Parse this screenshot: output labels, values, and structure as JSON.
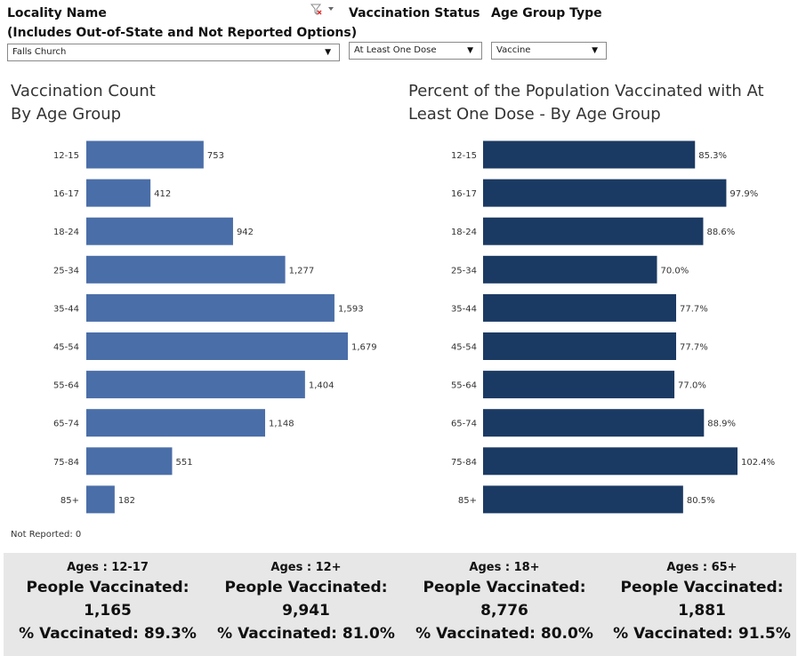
{
  "filters": {
    "locality": {
      "label_line1": "Locality Name",
      "label_line2": "(Includes Out-of-State and Not Reported Options)",
      "value": "Falls Church"
    },
    "vaccination_status": {
      "label": "Vaccination Status",
      "value": "At Least One Dose"
    },
    "age_group_type": {
      "label": "Age Group Type",
      "value": "Vaccine"
    },
    "clear_filter_icon": "filter-clear-icon"
  },
  "chart_data": [
    {
      "type": "bar",
      "orientation": "horizontal",
      "title": "Vaccination Count",
      "subtitle": "By Age Group",
      "categories": [
        "12-15",
        "16-17",
        "18-24",
        "25-34",
        "35-44",
        "45-54",
        "55-64",
        "65-74",
        "75-84",
        "85+"
      ],
      "values": [
        753,
        412,
        942,
        1277,
        1593,
        1679,
        1404,
        1148,
        551,
        182
      ],
      "value_labels": [
        "753",
        "412",
        "942",
        "1,277",
        "1,593",
        "1,679",
        "1,404",
        "1,148",
        "551",
        "182"
      ],
      "color": "#4a6ea8",
      "grid": false
    },
    {
      "type": "bar",
      "orientation": "horizontal",
      "title": "Percent of the Population Vaccinated with At",
      "subtitle": "Least One Dose - By Age Group",
      "categories": [
        "12-15",
        "16-17",
        "18-24",
        "25-34",
        "35-44",
        "45-54",
        "55-64",
        "65-74",
        "75-84",
        "85+"
      ],
      "values": [
        85.3,
        97.9,
        88.6,
        70.0,
        77.7,
        77.7,
        77.0,
        88.9,
        102.4,
        80.5
      ],
      "value_labels": [
        "85.3%",
        "97.9%",
        "88.6%",
        "70.0%",
        "77.7%",
        "77.7%",
        "77.0%",
        "88.9%",
        "102.4%",
        "80.5%"
      ],
      "color": "#1b3a63",
      "grid": false
    }
  ],
  "not_reported": "Not Reported: 0",
  "summary": [
    {
      "header": "Ages : 12-17",
      "people_label": "People Vaccinated:",
      "people_value": "1,165",
      "pct": "% Vaccinated: 89.3%"
    },
    {
      "header": "Ages : 12+",
      "people_label": "People Vaccinated:",
      "people_value": "9,941",
      "pct": "% Vaccinated: 81.0%"
    },
    {
      "header": "Ages : 18+",
      "people_label": "People Vaccinated:",
      "people_value": "8,776",
      "pct": "% Vaccinated: 80.0%"
    },
    {
      "header": "Ages : 65+",
      "people_label": "People Vaccinated:",
      "people_value": "1,881",
      "pct": "% Vaccinated: 91.5%"
    }
  ]
}
